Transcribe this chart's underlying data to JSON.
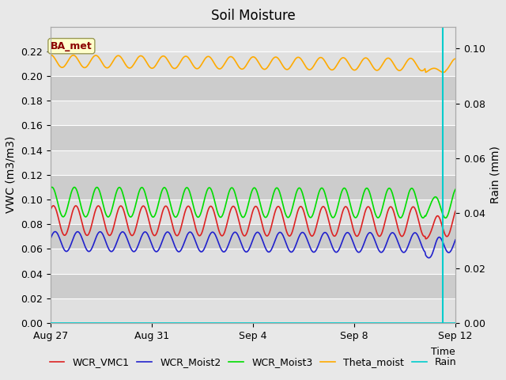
{
  "title": "Soil Moisture",
  "ylabel_left": "VWC (m3/m3)",
  "ylabel_right": "Rain (mm)",
  "xlabel": "Time",
  "xlim_days": [
    0,
    16
  ],
  "ylim_left": [
    0.0,
    0.24
  ],
  "ylim_right": [
    0.0,
    0.108
  ],
  "yticks_left": [
    0.0,
    0.02,
    0.04,
    0.06,
    0.08,
    0.1,
    0.12,
    0.14,
    0.16,
    0.18,
    0.2,
    0.22
  ],
  "yticks_right": [
    0.0,
    0.02,
    0.04,
    0.06,
    0.08,
    0.1
  ],
  "xtick_labels": [
    "Aug 27",
    "Aug 31",
    "Sep 4",
    "Sep 8",
    "Sep 12"
  ],
  "xtick_positions": [
    0,
    4,
    8,
    12,
    16
  ],
  "background_color": "#e8e8e8",
  "plot_bg_color_dark": "#cccccc",
  "plot_bg_color_light": "#e0e0e0",
  "grid_color": "#ffffff",
  "colors": {
    "WCR_VMC1": "#dd2222",
    "WCR_Moist2": "#2222cc",
    "WCR_Moist3": "#00dd00",
    "Theta_moist": "#ffaa00",
    "Rain": "#00cccc"
  },
  "vertical_line_x": 15.5,
  "annotation_label": "BA_met",
  "n_points": 600,
  "theta_base": 0.212,
  "theta_amp": 0.005,
  "theta_freq": 18,
  "theta_drift": -0.003,
  "vmc1_base": 0.083,
  "vmc1_amp": 0.012,
  "vmc1_freq": 18,
  "moist2_base": 0.066,
  "moist2_amp": 0.008,
  "moist2_freq": 18,
  "moist3_base": 0.098,
  "moist3_amp": 0.012,
  "moist3_freq": 18,
  "linewidth": 1.2,
  "title_fontsize": 12,
  "label_fontsize": 10,
  "tick_fontsize": 9,
  "legend_fontsize": 9
}
